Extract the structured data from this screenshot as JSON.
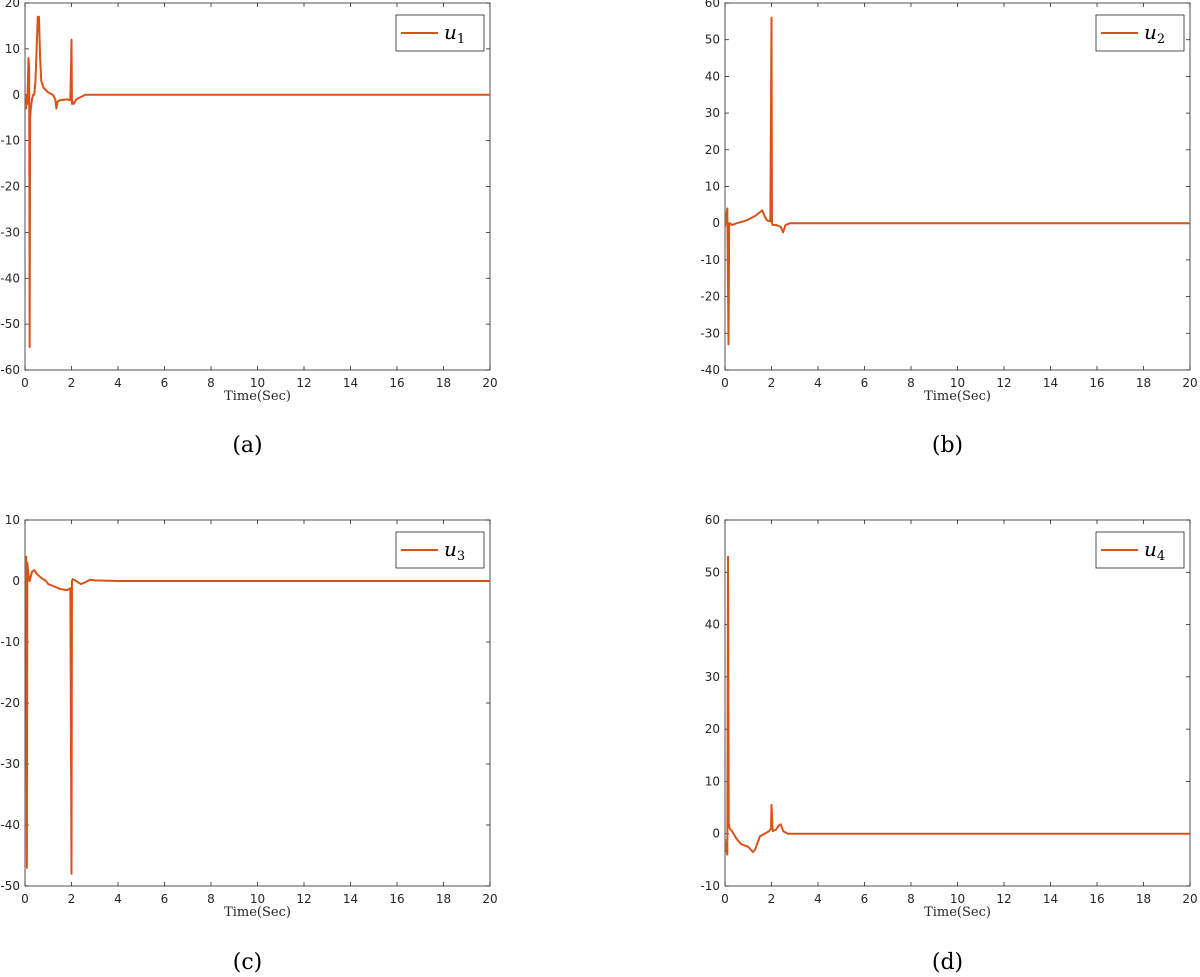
{
  "colors": {
    "series": "#d95319",
    "axis": "#262626",
    "background": "#ffffff"
  },
  "chart_data": [
    {
      "type": "line",
      "caption": "(a)",
      "xlabel": "Time(Sec)",
      "ylabel": "",
      "xlim": [
        0,
        20
      ],
      "ylim": [
        -60,
        20
      ],
      "xticks": [
        0,
        2,
        4,
        6,
        8,
        10,
        12,
        14,
        16,
        18,
        20
      ],
      "yticks": [
        -60,
        -50,
        -40,
        -30,
        -20,
        -10,
        0,
        10,
        20
      ],
      "grid": false,
      "legend_position": "top-right",
      "series": [
        {
          "name": "u",
          "subscript": "1",
          "x": [
            0,
            0.04,
            0.08,
            0.1,
            0.12,
            0.15,
            0.18,
            0.2,
            0.22,
            0.25,
            0.3,
            0.35,
            0.4,
            0.45,
            0.5,
            0.55,
            0.6,
            0.65,
            0.7,
            0.8,
            1.0,
            1.2,
            1.3,
            1.35,
            1.4,
            1.5,
            1.8,
            1.95,
            2.0,
            2.02,
            2.05,
            2.1,
            2.2,
            2.4,
            2.6,
            3.0,
            4.0,
            20
          ],
          "y": [
            -2,
            -3,
            0,
            -2,
            2,
            8,
            6,
            -55,
            -5,
            -3,
            -1,
            0,
            0,
            3,
            10,
            17,
            17,
            8,
            3,
            1.5,
            0.5,
            0,
            -1,
            -3,
            -1.5,
            -1.2,
            -1,
            -1.2,
            12,
            -2,
            -1.5,
            -2,
            -1,
            -0.5,
            0,
            0,
            0,
            0
          ]
        }
      ]
    },
    {
      "type": "line",
      "caption": "(b)",
      "xlabel": "Time(Sec)",
      "ylabel": "",
      "xlim": [
        0,
        20
      ],
      "ylim": [
        -40,
        60
      ],
      "xticks": [
        0,
        2,
        4,
        6,
        8,
        10,
        12,
        14,
        16,
        18,
        20
      ],
      "yticks": [
        -40,
        -30,
        -20,
        -10,
        0,
        10,
        20,
        30,
        40,
        50,
        60
      ],
      "grid": false,
      "legend_position": "top-right",
      "series": [
        {
          "name": "u",
          "subscript": "2",
          "x": [
            0,
            0.05,
            0.1,
            0.15,
            0.18,
            0.22,
            0.3,
            0.5,
            0.8,
            1.0,
            1.3,
            1.5,
            1.6,
            1.7,
            1.8,
            1.95,
            2.0,
            2.02,
            2.05,
            2.2,
            2.4,
            2.5,
            2.6,
            2.8,
            3.0,
            20
          ],
          "y": [
            -1,
            2,
            4,
            -33,
            0,
            0,
            -0.5,
            0,
            0.5,
            1,
            2,
            3,
            3.5,
            2,
            0.8,
            0.5,
            56,
            0,
            -0.5,
            -0.5,
            -1,
            -2.5,
            -0.5,
            0,
            0,
            0
          ]
        }
      ]
    },
    {
      "type": "line",
      "caption": "(c)",
      "xlabel": "Time(Sec)",
      "ylabel": "",
      "xlim": [
        0,
        20
      ],
      "ylim": [
        -50,
        10
      ],
      "xticks": [
        0,
        2,
        4,
        6,
        8,
        10,
        12,
        14,
        16,
        18,
        20
      ],
      "yticks": [
        -50,
        -40,
        -30,
        -20,
        -10,
        0,
        10
      ],
      "grid": false,
      "legend_position": "top-right",
      "series": [
        {
          "name": "u",
          "subscript": "3",
          "x": [
            0,
            0.05,
            0.08,
            0.1,
            0.15,
            0.2,
            0.3,
            0.4,
            0.5,
            0.7,
            0.9,
            1.0,
            1.2,
            1.5,
            1.8,
            1.95,
            2.0,
            2.02,
            2.05,
            2.2,
            2.4,
            2.6,
            2.8,
            3.0,
            4.0,
            20
          ],
          "y": [
            0,
            4,
            -47,
            3,
            1,
            0,
            1.5,
            1.8,
            1.2,
            0.5,
            0,
            -0.5,
            -0.8,
            -1.3,
            -1.5,
            -1.2,
            -48,
            0,
            0.3,
            0,
            -0.5,
            -0.2,
            0.2,
            0.1,
            0,
            0
          ]
        }
      ]
    },
    {
      "type": "line",
      "caption": "(d)",
      "xlabel": "Time(Sec)",
      "ylabel": "",
      "xlim": [
        0,
        20
      ],
      "ylim": [
        -10,
        60
      ],
      "xticks": [
        0,
        2,
        4,
        6,
        8,
        10,
        12,
        14,
        16,
        18,
        20
      ],
      "yticks": [
        -10,
        0,
        10,
        20,
        30,
        40,
        50,
        60
      ],
      "grid": false,
      "legend_position": "top-right",
      "series": [
        {
          "name": "u",
          "subscript": "4",
          "x": [
            0,
            0.05,
            0.1,
            0.13,
            0.16,
            0.2,
            0.3,
            0.5,
            0.7,
            1.0,
            1.2,
            1.3,
            1.5,
            1.7,
            1.9,
            1.98,
            2.0,
            2.05,
            2.2,
            2.3,
            2.4,
            2.5,
            2.7,
            3.0,
            4.0,
            20
          ],
          "y": [
            -1,
            -3,
            -4,
            53,
            2,
            1,
            0.5,
            -1,
            -2,
            -2.5,
            -3.5,
            -3,
            -0.5,
            0,
            0.5,
            1,
            5.5,
            0.5,
            0.8,
            1.5,
            1.8,
            0.5,
            0,
            0,
            0,
            0
          ]
        }
      ]
    }
  ]
}
